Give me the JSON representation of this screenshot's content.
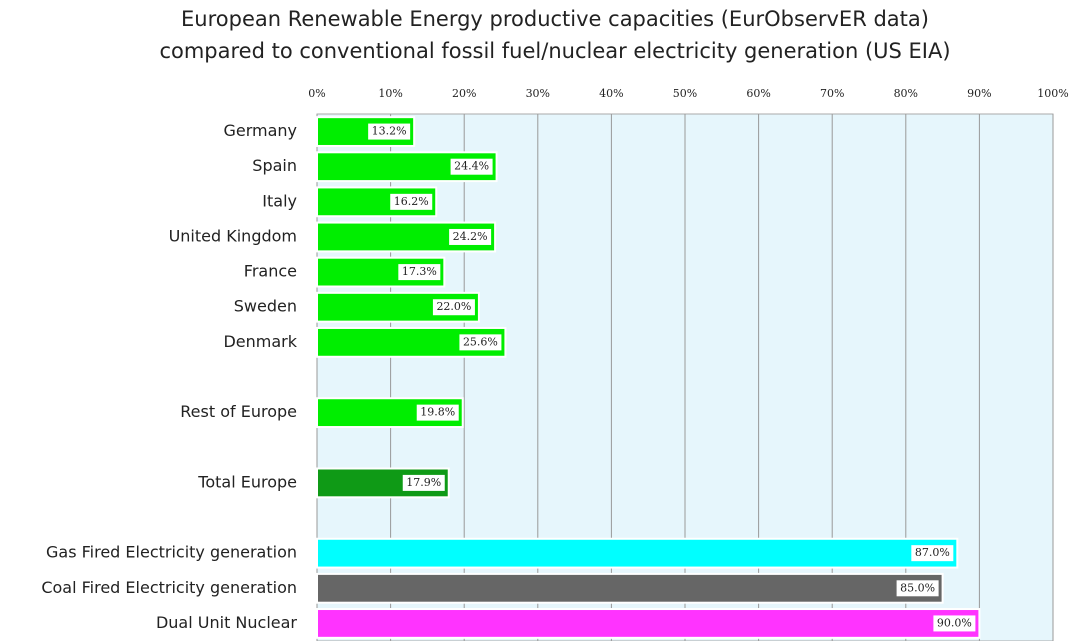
{
  "chart_data": {
    "type": "hbar",
    "title": [
      "European Renewable Energy productive capacities (EurObservER data)",
      "compared to conventional fossil fuel/nuclear electricity generation (US EIA)"
    ],
    "categories": [
      "Germany",
      "Spain",
      "Italy",
      "United Kingdom",
      "France",
      "Sweden",
      "Denmark",
      null,
      "Rest of Europe",
      null,
      "Total Europe",
      null,
      "Gas Fired Electricity generation",
      "Coal Fired Electricity generation",
      "Dual Unit Nuclear"
    ],
    "values": [
      13.2,
      24.4,
      16.2,
      24.2,
      17.3,
      22.0,
      25.6,
      null,
      19.8,
      null,
      17.9,
      null,
      87.0,
      85.0,
      90.0
    ],
    "value_labels": [
      "13.2%",
      "24.4%",
      "16.2%",
      "24.2%",
      "17.3%",
      "22.0%",
      "25.6%",
      null,
      "19.8%",
      null,
      "17.9%",
      null,
      "87.0%",
      "85.0%",
      "90.0%"
    ],
    "colors": [
      "#00ee00",
      "#00ee00",
      "#00ee00",
      "#00ee00",
      "#00ee00",
      "#00ee00",
      "#00ee00",
      null,
      "#00ee00",
      null,
      "#0f9a16",
      null,
      "#00ffff",
      "#666666",
      "#ff33ff"
    ],
    "xlim": [
      0,
      100
    ],
    "xticks": [
      {
        "value": 0,
        "label": "0%"
      },
      {
        "value": 10,
        "label": "10%"
      },
      {
        "value": 20,
        "label": "20%"
      },
      {
        "value": 30,
        "label": "30%"
      },
      {
        "value": 40,
        "label": "40%"
      },
      {
        "value": 50,
        "label": "50%"
      },
      {
        "value": 60,
        "label": "60%"
      },
      {
        "value": 70,
        "label": "70%"
      },
      {
        "value": 80,
        "label": "80%"
      },
      {
        "value": 90,
        "label": "90%"
      },
      {
        "value": 100,
        "label": "100%"
      }
    ],
    "grid": true
  }
}
